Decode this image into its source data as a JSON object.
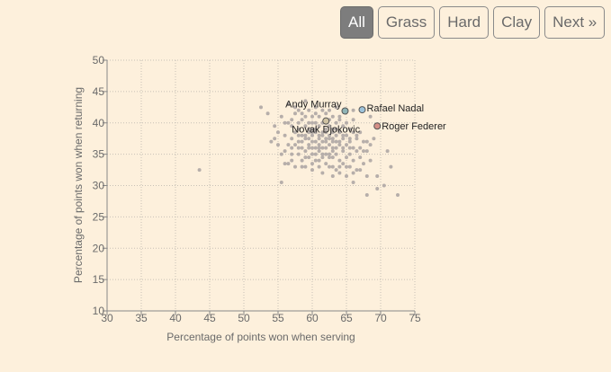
{
  "filters": {
    "all": "All",
    "grass": "Grass",
    "hard": "Hard",
    "clay": "Clay",
    "next": "Next »",
    "selected": "All"
  },
  "colors": {
    "background": "#fdf0dc",
    "point": "#b6aeaa",
    "murray": "#8fb3b5",
    "djokovic": "#cfc2a2",
    "nadal": "#9ec3da",
    "federer": "#d58f86",
    "active_button": "#7d7d7d"
  },
  "chart_data": {
    "type": "scatter",
    "xlabel": "Percentage of points won when serving",
    "ylabel": "Percentage of points won when returning",
    "xlim": [
      30,
      75
    ],
    "ylim": [
      10,
      50
    ],
    "xticks": [
      30,
      35,
      40,
      45,
      50,
      55,
      60,
      65,
      70,
      75
    ],
    "yticks": [
      10,
      15,
      20,
      25,
      30,
      35,
      40,
      45,
      50
    ],
    "grid": true,
    "highlighted": [
      {
        "name": "Andy Murray",
        "x": 64.8,
        "y": 41.9,
        "color": "#8fb3b5"
      },
      {
        "name": "Novak Djokovic",
        "x": 62.0,
        "y": 40.3,
        "color": "#cfc2a2"
      },
      {
        "name": "Rafael Nadal",
        "x": 67.3,
        "y": 42.1,
        "color": "#9ec3da"
      },
      {
        "name": "Roger Federer",
        "x": 69.5,
        "y": 39.5,
        "color": "#d58f86"
      }
    ],
    "points": [
      [
        43.5,
        32.5
      ],
      [
        52.5,
        42.5
      ],
      [
        55.5,
        30.5
      ],
      [
        54.5,
        39.5
      ],
      [
        53.5,
        41.5
      ],
      [
        54.0,
        37.0
      ],
      [
        55.0,
        36.5
      ],
      [
        55.5,
        41.0
      ],
      [
        56.0,
        38.0
      ],
      [
        56.0,
        35.5
      ],
      [
        56.5,
        40.0
      ],
      [
        56.5,
        43.0
      ],
      [
        56.5,
        33.5
      ],
      [
        57.0,
        37.5
      ],
      [
        57.0,
        39.5
      ],
      [
        57.0,
        35.0
      ],
      [
        57.5,
        41.5
      ],
      [
        57.5,
        36.5
      ],
      [
        57.5,
        38.5
      ],
      [
        57.5,
        33.0
      ],
      [
        58.0,
        40.0
      ],
      [
        58.0,
        37.0
      ],
      [
        58.0,
        39.0
      ],
      [
        58.0,
        35.0
      ],
      [
        58.0,
        42.0
      ],
      [
        58.5,
        38.0
      ],
      [
        58.5,
        36.0
      ],
      [
        58.5,
        40.5
      ],
      [
        58.5,
        34.0
      ],
      [
        59.0,
        37.5
      ],
      [
        59.0,
        39.5
      ],
      [
        59.0,
        35.5
      ],
      [
        59.0,
        41.0
      ],
      [
        59.0,
        33.0
      ],
      [
        59.5,
        38.5
      ],
      [
        59.5,
        36.5
      ],
      [
        59.5,
        40.0
      ],
      [
        59.5,
        34.5
      ],
      [
        59.5,
        42.0
      ],
      [
        60.0,
        37.0
      ],
      [
        60.0,
        39.0
      ],
      [
        60.0,
        35.0
      ],
      [
        60.0,
        41.0
      ],
      [
        60.0,
        33.5
      ],
      [
        60.0,
        38.0
      ],
      [
        60.5,
        36.0
      ],
      [
        60.5,
        40.0
      ],
      [
        60.5,
        38.5
      ],
      [
        60.5,
        34.0
      ],
      [
        60.5,
        42.5
      ],
      [
        61.0,
        37.5
      ],
      [
        61.0,
        39.5
      ],
      [
        61.0,
        35.5
      ],
      [
        61.0,
        41.0
      ],
      [
        61.0,
        33.0
      ],
      [
        61.0,
        36.5
      ],
      [
        61.5,
        38.0
      ],
      [
        61.5,
        40.0
      ],
      [
        61.5,
        36.0
      ],
      [
        61.5,
        34.5
      ],
      [
        61.5,
        42.0
      ],
      [
        62.0,
        37.0
      ],
      [
        62.0,
        39.0
      ],
      [
        62.0,
        35.0
      ],
      [
        62.0,
        38.5
      ],
      [
        62.0,
        33.5
      ],
      [
        62.0,
        41.5
      ],
      [
        62.5,
        36.5
      ],
      [
        62.5,
        38.0
      ],
      [
        62.5,
        40.5
      ],
      [
        62.5,
        34.5
      ],
      [
        62.5,
        37.5
      ],
      [
        63.0,
        35.5
      ],
      [
        63.0,
        39.0
      ],
      [
        63.0,
        37.0
      ],
      [
        63.0,
        33.0
      ],
      [
        63.0,
        41.0
      ],
      [
        63.0,
        36.0
      ],
      [
        63.5,
        38.0
      ],
      [
        63.5,
        35.0
      ],
      [
        63.5,
        40.0
      ],
      [
        63.5,
        32.5
      ],
      [
        63.5,
        37.0
      ],
      [
        64.0,
        36.5
      ],
      [
        64.0,
        38.5
      ],
      [
        64.0,
        34.0
      ],
      [
        64.0,
        40.5
      ],
      [
        64.0,
        32.0
      ],
      [
        64.5,
        37.5
      ],
      [
        64.5,
        35.5
      ],
      [
        64.5,
        39.5
      ],
      [
        64.5,
        33.5
      ],
      [
        65.0,
        36.5
      ],
      [
        65.0,
        38.0
      ],
      [
        65.0,
        34.5
      ],
      [
        65.0,
        31.5
      ],
      [
        65.5,
        37.0
      ],
      [
        65.5,
        35.0
      ],
      [
        65.5,
        39.0
      ],
      [
        65.5,
        33.0
      ],
      [
        66.0,
        36.0
      ],
      [
        66.0,
        38.5
      ],
      [
        66.0,
        34.0
      ],
      [
        66.0,
        30.5
      ],
      [
        66.5,
        37.5
      ],
      [
        66.5,
        35.5
      ],
      [
        66.5,
        32.5
      ],
      [
        67.0,
        36.0
      ],
      [
        67.0,
        38.5
      ],
      [
        67.0,
        34.5
      ],
      [
        67.5,
        37.0
      ],
      [
        67.5,
        33.5
      ],
      [
        68.0,
        35.5
      ],
      [
        68.0,
        31.5
      ],
      [
        68.0,
        28.5
      ],
      [
        68.5,
        36.5
      ],
      [
        68.5,
        34.0
      ],
      [
        69.0,
        37.5
      ],
      [
        69.5,
        31.5
      ],
      [
        69.5,
        29.5
      ],
      [
        70.5,
        30.0
      ],
      [
        71.0,
        35.5
      ],
      [
        71.5,
        33.0
      ],
      [
        72.5,
        28.5
      ],
      [
        68.5,
        41.0
      ],
      [
        66.0,
        42.0
      ],
      [
        63.5,
        42.5
      ],
      [
        59.0,
        43.5
      ],
      [
        61.5,
        38.5
      ],
      [
        60.5,
        37.0
      ],
      [
        62.5,
        39.5
      ],
      [
        59.5,
        37.5
      ],
      [
        61.0,
        38.0
      ],
      [
        63.0,
        38.5
      ],
      [
        60.0,
        36.0
      ],
      [
        62.0,
        36.0
      ],
      [
        64.0,
        37.0
      ],
      [
        58.5,
        37.0
      ],
      [
        57.0,
        40.5
      ],
      [
        60.5,
        39.0
      ],
      [
        61.5,
        35.0
      ],
      [
        63.5,
        39.0
      ],
      [
        62.5,
        35.0
      ],
      [
        59.5,
        36.0
      ],
      [
        64.5,
        36.0
      ],
      [
        65.5,
        36.0
      ],
      [
        58.0,
        38.0
      ],
      [
        60.0,
        40.0
      ],
      [
        62.0,
        40.0
      ],
      [
        61.0,
        34.0
      ],
      [
        63.0,
        34.5
      ],
      [
        56.5,
        36.5
      ],
      [
        55.5,
        35.0
      ],
      [
        54.5,
        37.5
      ],
      [
        55.0,
        38.5
      ],
      [
        57.0,
        36.0
      ],
      [
        66.5,
        38.0
      ],
      [
        67.5,
        35.5
      ],
      [
        68.0,
        37.0
      ],
      [
        65.0,
        40.0
      ],
      [
        66.0,
        40.5
      ],
      [
        64.0,
        41.0
      ],
      [
        62.5,
        42.0
      ],
      [
        60.5,
        41.5
      ],
      [
        58.5,
        41.5
      ],
      [
        57.5,
        42.5
      ],
      [
        56.0,
        40.0
      ],
      [
        59.0,
        38.0
      ],
      [
        61.0,
        36.0
      ],
      [
        63.0,
        37.5
      ],
      [
        62.0,
        37.5
      ],
      [
        60.0,
        38.5
      ],
      [
        61.5,
        37.0
      ],
      [
        63.5,
        36.0
      ],
      [
        64.5,
        38.0
      ],
      [
        65.5,
        37.5
      ],
      [
        59.5,
        39.0
      ],
      [
        58.0,
        36.0
      ],
      [
        57.0,
        34.0
      ],
      [
        56.0,
        33.5
      ],
      [
        59.0,
        34.5
      ],
      [
        60.5,
        35.0
      ],
      [
        62.5,
        33.0
      ],
      [
        64.0,
        33.0
      ],
      [
        65.0,
        33.0
      ],
      [
        66.0,
        32.0
      ],
      [
        67.0,
        32.5
      ],
      [
        63.0,
        31.5
      ],
      [
        61.5,
        32.0
      ],
      [
        60.0,
        32.5
      ],
      [
        58.5,
        33.0
      ]
    ]
  }
}
